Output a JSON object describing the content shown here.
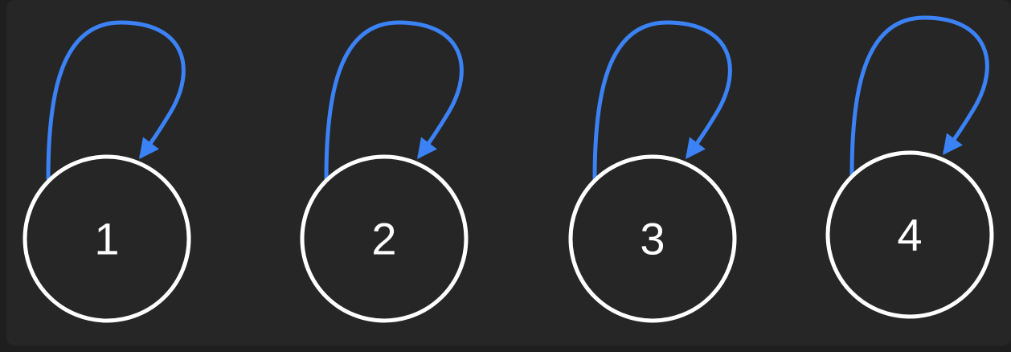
{
  "colors": {
    "background": "#262626",
    "node_stroke": "#ffffff",
    "label": "#ffffff",
    "edge": "#3b82f6"
  },
  "nodes": [
    {
      "id": "1",
      "label": "1"
    },
    {
      "id": "2",
      "label": "2"
    },
    {
      "id": "3",
      "label": "3"
    },
    {
      "id": "4",
      "label": "4"
    }
  ],
  "edges": [
    {
      "from": "1",
      "to": "1",
      "type": "self-loop"
    },
    {
      "from": "2",
      "to": "2",
      "type": "self-loop"
    },
    {
      "from": "3",
      "to": "3",
      "type": "self-loop"
    },
    {
      "from": "4",
      "to": "4",
      "type": "self-loop"
    }
  ]
}
